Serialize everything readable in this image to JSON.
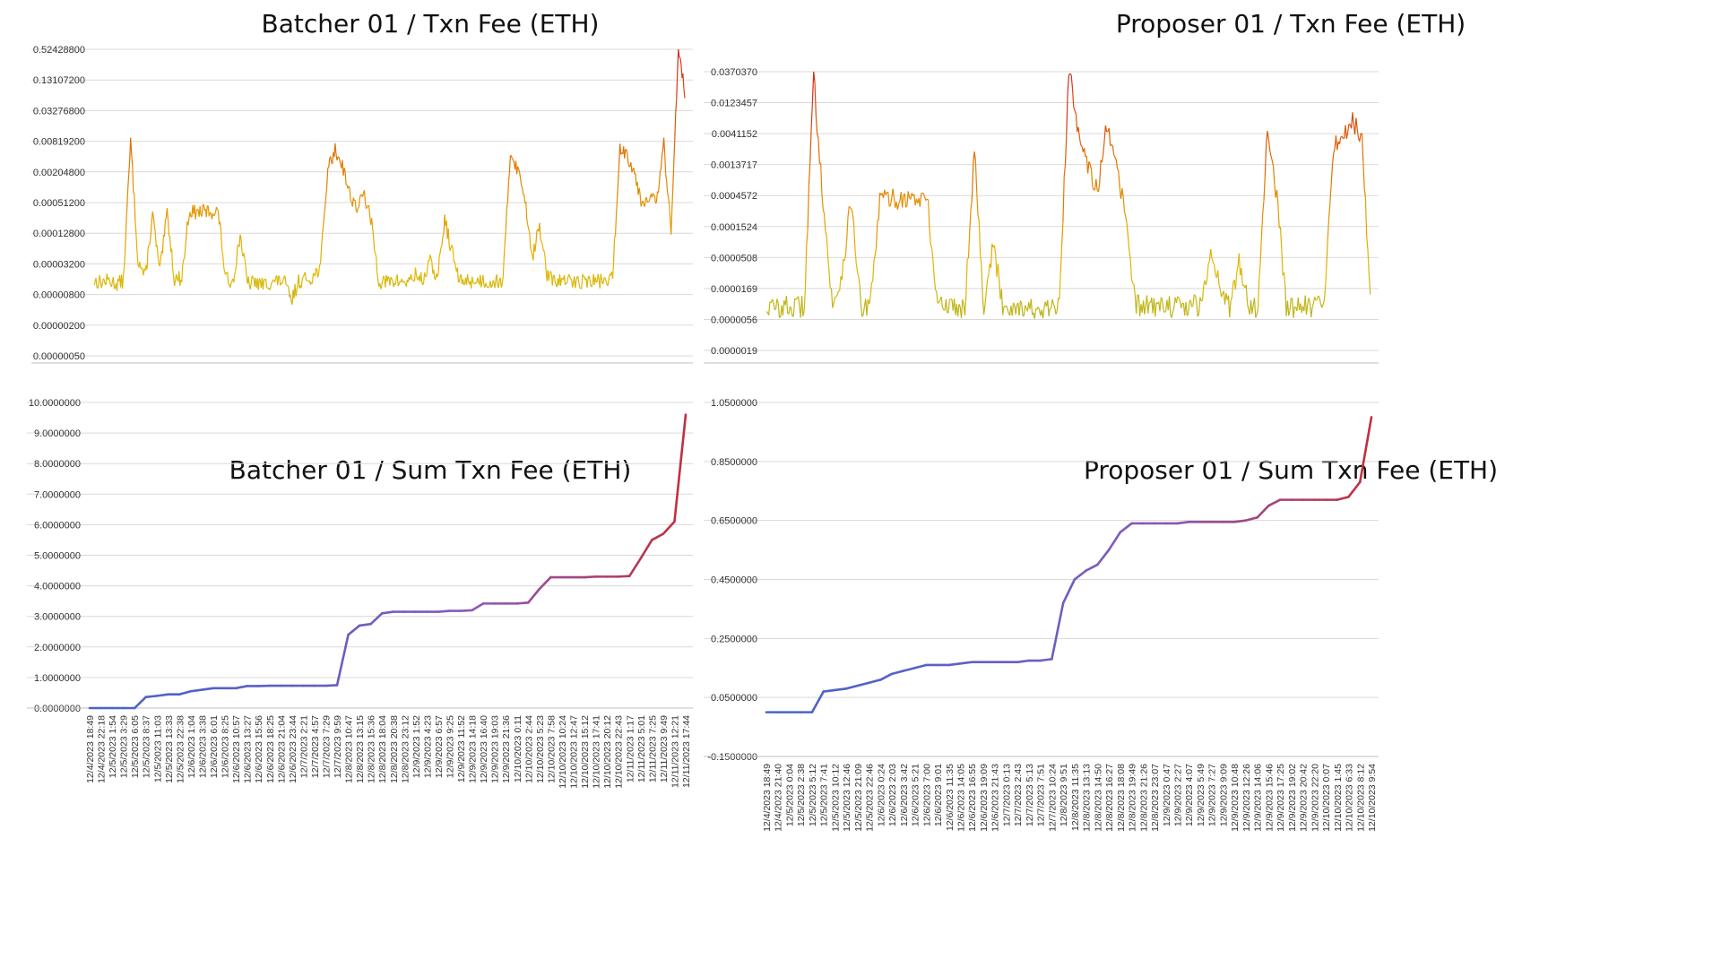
{
  "chart_data": [
    {
      "type": "line",
      "title": "Batcher 01 / Txn Fee (ETH)",
      "scale": "log",
      "ylim": [
        4.88e-08,
        0.524288
      ],
      "y_ticks": [
        "0.52428800",
        "0.13107200",
        "0.03276800",
        "0.00819200",
        "0.00204800",
        "0.00051200",
        "0.00012800",
        "0.00003200",
        "0.00000800",
        "0.00000200",
        "0.00000050"
      ],
      "grid": true,
      "color_scale": [
        "#8db33a",
        "#e8b800",
        "#e07a00",
        "#d42a1a"
      ],
      "series": [
        {
          "values": [
            2.5e-06,
            2.4e-06,
            2.6e-06,
            2.2e-06,
            2.5e-06,
            0.004,
            8e-06,
            3e-06,
            8.5e-05,
            4e-06,
            9.5e-05,
            2.8e-06,
            3e-06,
            0.0001,
            9.5e-05,
            0.0001,
            9.8e-05,
            0.0001,
            2.8e-06,
            2.5e-06,
            3e-05,
            2.2e-06,
            2.4e-06,
            2.1e-06,
            2.3e-06,
            2.5e-06,
            2.6e-06,
            8.5e-07,
            2.5e-06,
            2.8e-06,
            3.2e-06,
            5.5e-06,
            0.001,
            0.0025,
            0.0012,
            0.00025,
            0.00012,
            0.00025,
            5e-05,
            2.5e-06,
            2.4e-06,
            2.5e-06,
            2.5e-06,
            2.4e-06,
            3.5e-06,
            2.6e-06,
            7e-06,
            2.8e-06,
            6.5e-05,
            1.2e-05,
            2.5e-06,
            2.6e-06,
            2.5e-06,
            2.6e-06,
            2.4e-06,
            2.5e-06,
            2.6e-06,
            0.0025,
            0.0009,
            0.0002,
            9e-06,
            4.5e-05,
            3.5e-06,
            2.5e-06,
            2.6e-06,
            2.5e-06,
            2.4e-06,
            2.6e-06,
            2.5e-06,
            2.6e-06,
            2.5e-06,
            3e-06,
            0.003,
            0.002,
            0.0008,
            0.00015,
            0.00025,
            0.00015,
            0.0035,
            3e-05,
            0.7,
            0.04
          ]
        }
      ]
    },
    {
      "type": "line",
      "title": "Proposer 01 / Txn Fee (ETH)",
      "scale": "log",
      "ylim": [
        1.9e-06,
        0.037037
      ],
      "y_ticks": [
        "0.0370370",
        "0.0123457",
        "0.0041152",
        "0.0013717",
        "0.0004572",
        "0.0001524",
        "0.0000508",
        "0.0000169",
        "0.0000056",
        "0.0000019"
      ],
      "grid": true,
      "color_scale": [
        "#8db33a",
        "#e8b800",
        "#e07a00",
        "#d42a1a"
      ],
      "series": [
        {
          "values": [
            9e-06,
            8.5e-06,
            9e-06,
            8.5e-06,
            9e-06,
            0.03,
            0.0004,
            8e-06,
            3e-05,
            0.0004,
            8e-06,
            9e-06,
            0.0004,
            0.00042,
            0.0004,
            0.00042,
            0.0004,
            0.00042,
            1.2e-05,
            9e-06,
            9.5e-06,
            8.5e-06,
            0.0025,
            9e-06,
            8e-05,
            9.5e-06,
            9e-06,
            9e-06,
            8.5e-06,
            6.5e-06,
            8.5e-06,
            9.5e-06,
            0.04,
            0.005,
            0.0015,
            0.0005,
            0.005,
            0.0012,
            0.00025,
            9e-06,
            9.5e-06,
            9e-06,
            9.5e-06,
            9e-06,
            9e-06,
            9.5e-06,
            9e-06,
            7e-05,
            2e-05,
            8e-06,
            4.5e-05,
            9.5e-06,
            9e-06,
            0.005,
            0.00045,
            9e-06,
            9e-06,
            9.5e-06,
            9e-06,
            9e-06,
            0.0025,
            0.004,
            0.007,
            0.003,
            6.5e-06
          ]
        }
      ]
    },
    {
      "type": "line",
      "title": "Batcher 01 / Sum Txn Fee (ETH)",
      "ylim": [
        0,
        10
      ],
      "y_ticks": [
        "10.0000000",
        "9.0000000",
        "8.0000000",
        "7.0000000",
        "6.0000000",
        "5.0000000",
        "4.0000000",
        "3.0000000",
        "2.0000000",
        "1.0000000",
        "0.0000000"
      ],
      "categories": [
        "12/4/2023 18:49",
        "12/4/2023 22:18",
        "12/5/2023 1:54",
        "12/5/2023 3:29",
        "12/5/2023 6:05",
        "12/5/2023 8:37",
        "12/5/2023 11:03",
        "12/5/2023 13:33",
        "12/5/2023 22:38",
        "12/6/2023 1:04",
        "12/6/2023 3:38",
        "12/6/2023 6:01",
        "12/6/2023 8:25",
        "12/6/2023 10:57",
        "12/6/2023 13:27",
        "12/6/2023 15:56",
        "12/6/2023 18:25",
        "12/6/2023 21:04",
        "12/6/2023 23:44",
        "12/7/2023 2:21",
        "12/7/2023 4:57",
        "12/7/2023 7:29",
        "12/7/2023 9:59",
        "12/8/2023 10:47",
        "12/8/2023 13:15",
        "12/8/2023 15:36",
        "12/8/2023 18:04",
        "12/8/2023 20:38",
        "12/8/2023 23:12",
        "12/9/2023 1:52",
        "12/9/2023 4:23",
        "12/9/2023 6:57",
        "12/9/2023 9:25",
        "12/9/2023 11:52",
        "12/9/2023 14:18",
        "12/9/2023 16:40",
        "12/9/2023 19:03",
        "12/9/2023 21:36",
        "12/10/2023 0:11",
        "12/10/2023 2:44",
        "12/10/2023 5:23",
        "12/10/2023 7:58",
        "12/10/2023 10:24",
        "12/10/2023 12:47",
        "12/10/2023 15:12",
        "12/10/2023 17:41",
        "12/10/2023 20:12",
        "12/10/2023 22:43",
        "12/11/2023 1:17",
        "12/11/2023 5:01",
        "12/11/2023 7:25",
        "12/11/2023 9:49",
        "12/11/2023 12:21",
        "12/11/2023 17:44"
      ],
      "series": [
        {
          "values": [
            0,
            0,
            0,
            0,
            0,
            0.36,
            0.4,
            0.45,
            0.45,
            0.55,
            0.6,
            0.65,
            0.65,
            0.65,
            0.72,
            0.72,
            0.73,
            0.73,
            0.73,
            0.73,
            0.73,
            0.73,
            0.75,
            2.4,
            2.7,
            2.75,
            3.1,
            3.15,
            3.15,
            3.15,
            3.15,
            3.15,
            3.18,
            3.18,
            3.2,
            3.42,
            3.42,
            3.42,
            3.42,
            3.45,
            3.9,
            4.28,
            4.28,
            4.28,
            4.28,
            4.3,
            4.3,
            4.3,
            4.32,
            4.9,
            5.5,
            5.7,
            6.1,
            9.6
          ]
        }
      ],
      "color_scale": [
        "#4a64c8",
        "#8a58b8",
        "#c0303c"
      ]
    },
    {
      "type": "line",
      "title": "Proposer 01 / Sum Txn Fee (ETH)",
      "ylim": [
        -0.15,
        1.05
      ],
      "y_ticks": [
        "1.0500000",
        "0.8500000",
        "0.6500000",
        "0.4500000",
        "0.2500000",
        "0.0500000",
        "-0.1500000"
      ],
      "categories": [
        "12/4/2023 18:49",
        "12/4/2023 21:40",
        "12/5/2023 0:04",
        "12/5/2023 2:38",
        "12/5/2023 5:12",
        "12/5/2023 7:41",
        "12/5/2023 10:12",
        "12/5/2023 12:46",
        "12/5/2023 21:09",
        "12/5/2023 22:46",
        "12/6/2023 0:24",
        "12/6/2023 2:03",
        "12/6/2023 3:42",
        "12/6/2023 5:21",
        "12/6/2023 7:00",
        "12/6/2023 9:01",
        "12/6/2023 11:35",
        "12/6/2023 14:05",
        "12/6/2023 16:55",
        "12/6/2023 19:09",
        "12/6/2023 21:43",
        "12/7/2023 0:13",
        "12/7/2023 2:43",
        "12/7/2023 5:13",
        "12/7/2023 7:51",
        "12/7/2023 10:24",
        "12/8/2023 9:51",
        "12/8/2023 11:35",
        "12/8/2023 13:13",
        "12/8/2023 14:50",
        "12/8/2023 16:27",
        "12/8/2023 18:08",
        "12/8/2023 19:49",
        "12/8/2023 21:26",
        "12/8/2023 23:07",
        "12/9/2023 0:47",
        "12/9/2023 2:27",
        "12/9/2023 4:07",
        "12/9/2023 5:49",
        "12/9/2023 7:27",
        "12/9/2023 9:09",
        "12/9/2023 10:48",
        "12/9/2023 12:26",
        "12/9/2023 14:06",
        "12/9/2023 15:46",
        "12/9/2023 17:25",
        "12/9/2023 19:02",
        "12/9/2023 20:42",
        "12/9/2023 22:20",
        "12/10/2023 0:07",
        "12/10/2023 1:45",
        "12/10/2023 6:33",
        "12/10/2023 8:12",
        "12/10/2023 9:54"
      ],
      "series": [
        {
          "values": [
            0.0,
            0.0,
            0.0,
            0.0,
            0.0,
            0.07,
            0.075,
            0.08,
            0.09,
            0.1,
            0.11,
            0.13,
            0.14,
            0.15,
            0.16,
            0.16,
            0.16,
            0.165,
            0.17,
            0.17,
            0.17,
            0.17,
            0.17,
            0.175,
            0.175,
            0.18,
            0.37,
            0.45,
            0.48,
            0.5,
            0.55,
            0.61,
            0.64,
            0.64,
            0.64,
            0.64,
            0.64,
            0.645,
            0.645,
            0.645,
            0.645,
            0.645,
            0.65,
            0.66,
            0.7,
            0.72,
            0.72,
            0.72,
            0.72,
            0.72,
            0.72,
            0.73,
            0.78,
            1.0
          ]
        }
      ],
      "color_scale": [
        "#4a64c8",
        "#8a58b8",
        "#c0303c"
      ]
    }
  ]
}
